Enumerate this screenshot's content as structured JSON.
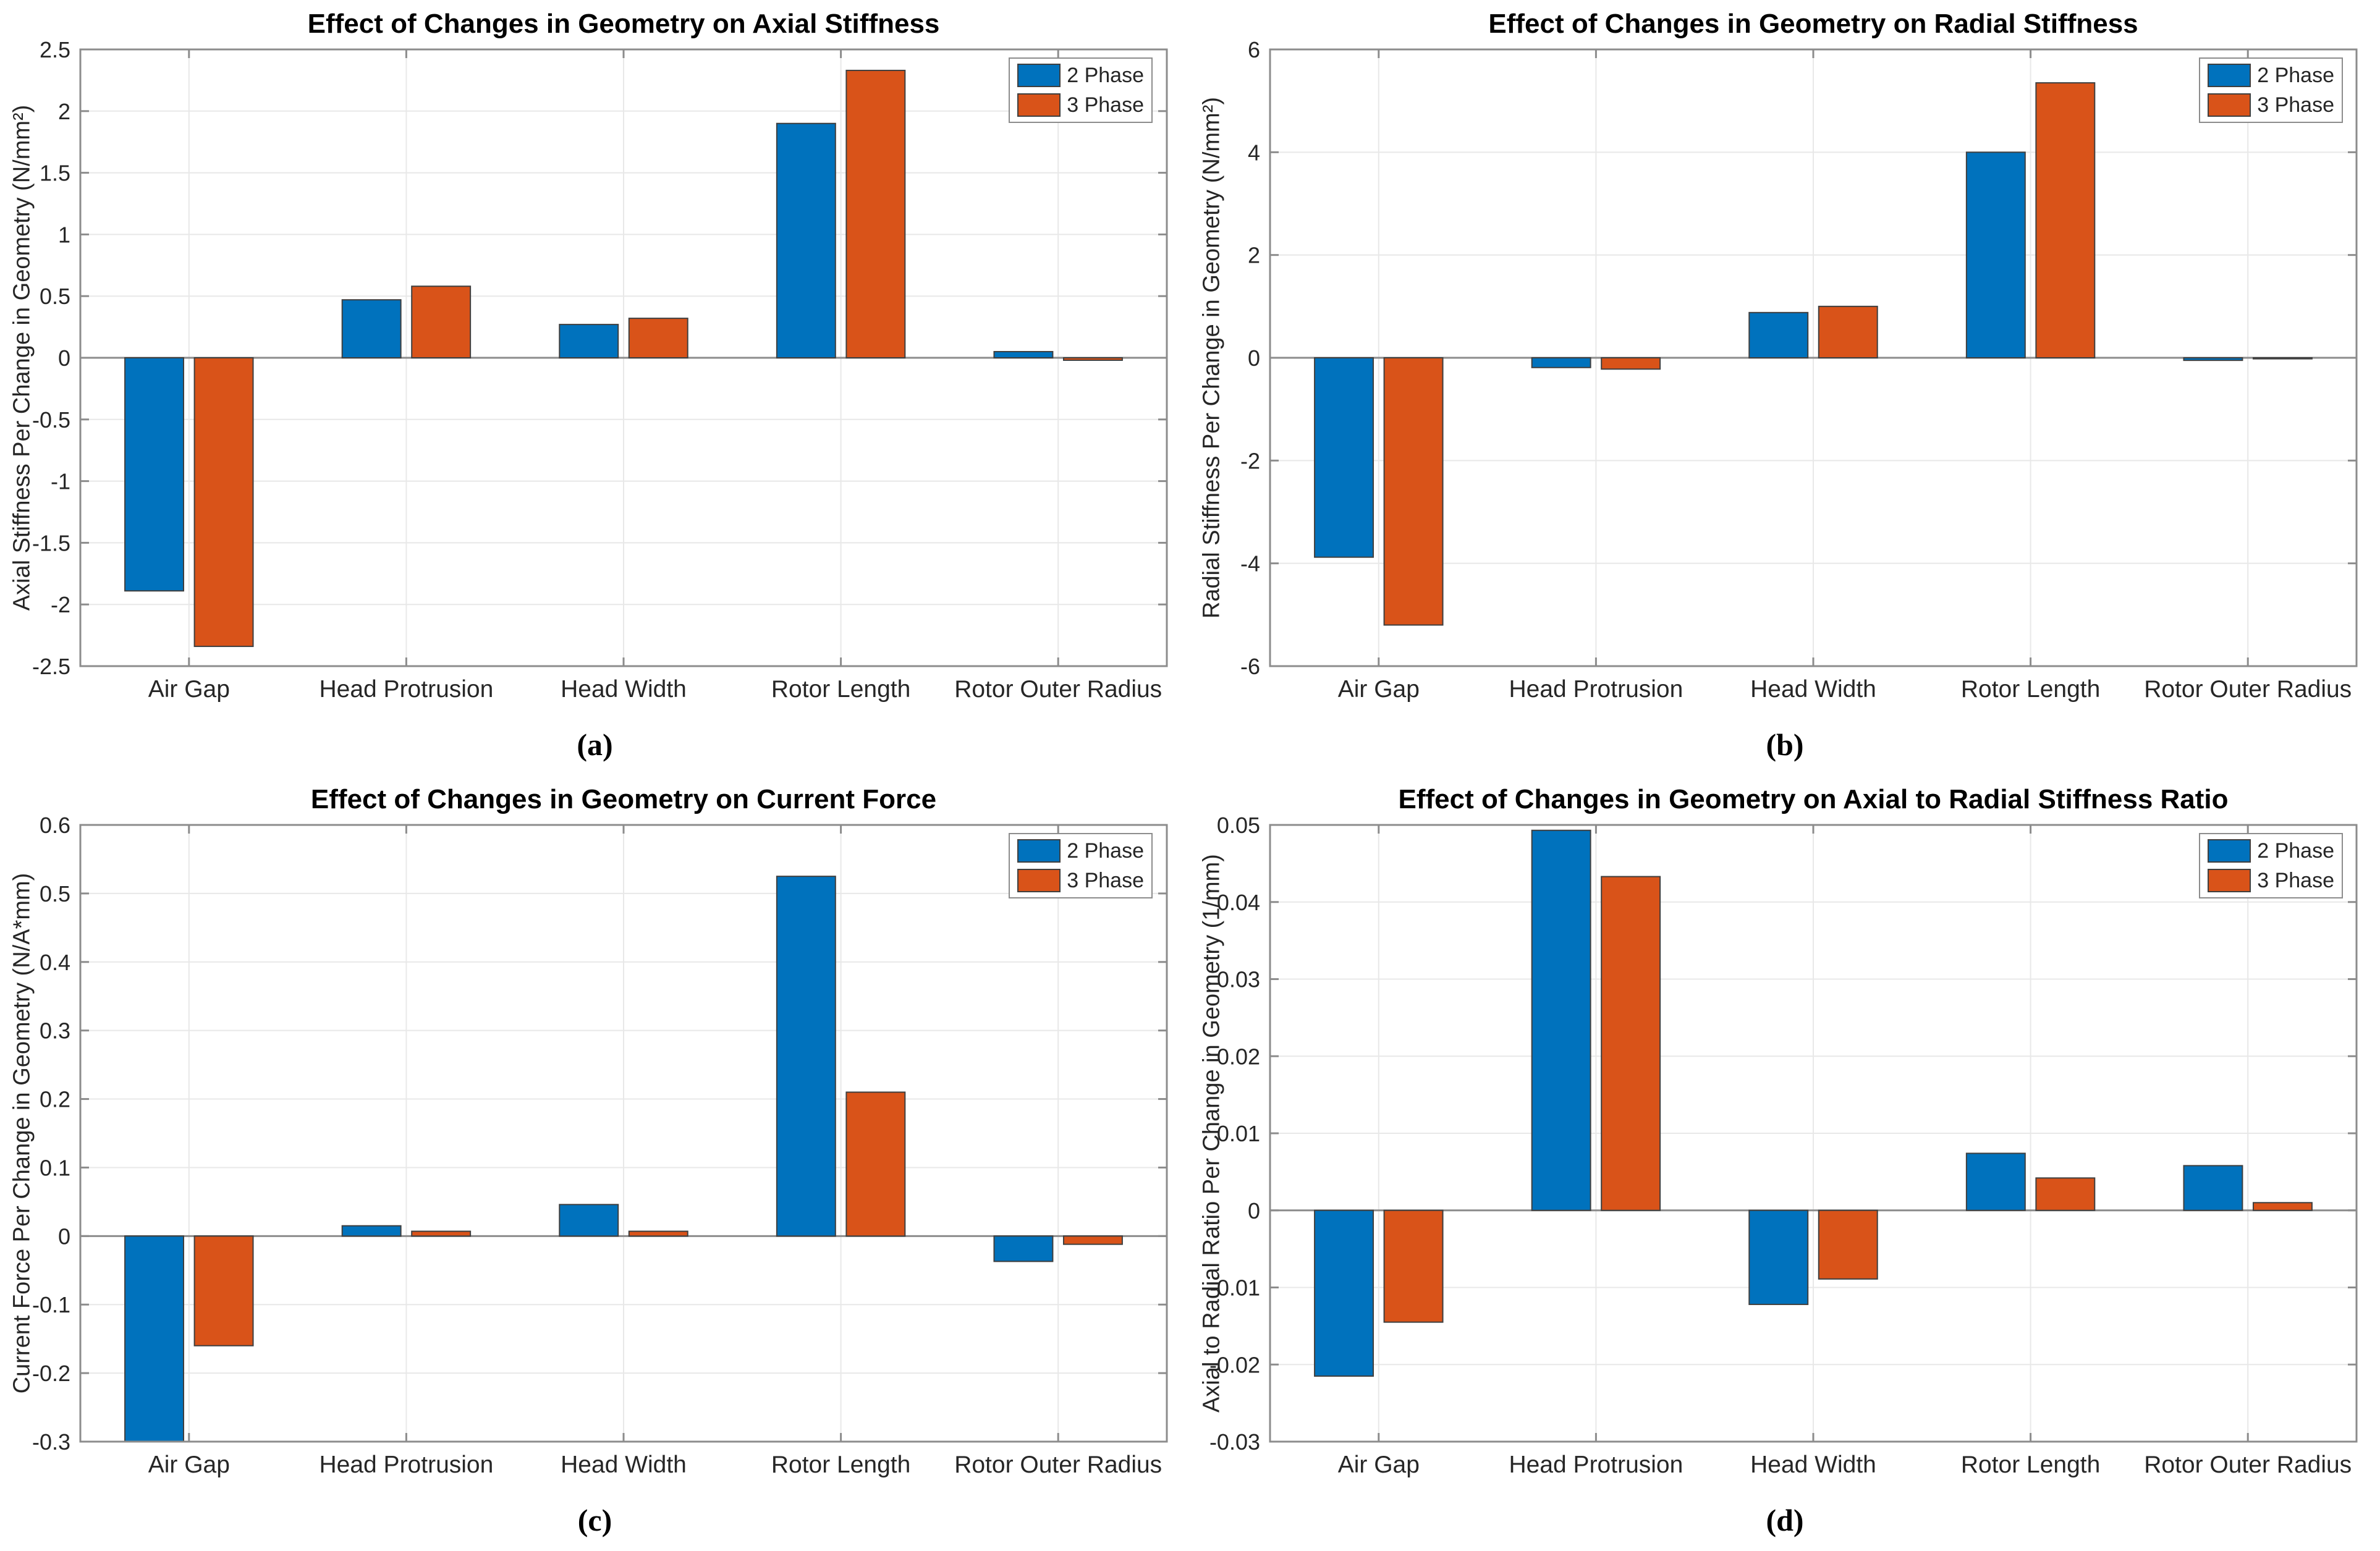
{
  "page": {
    "background": "#ffffff"
  },
  "legend": {
    "labels": [
      "2 Phase",
      "3 Phase"
    ],
    "position": "top-right"
  },
  "series_colors": {
    "2 Phase": "#0072BD",
    "3 Phase": "#D95319"
  },
  "style": {
    "axis_color": "#8c8c8c",
    "grid_color": "#e8e8e8",
    "bar_edge_color": "#3f3f3f",
    "text_color": "#262626"
  },
  "chart_data": [
    {
      "type": "bar",
      "title": "Effect of Changes in Geometry on Axial Stiffness",
      "ylabel": "Axial Stiffness Per Change in Geometry (N/mm²)",
      "xlabel": "",
      "caption": "(a)",
      "categories": [
        "Air Gap",
        "Head Protrusion",
        "Head Width",
        "Rotor Length",
        "Rotor Outer Radius"
      ],
      "series": [
        {
          "name": "2 Phase",
          "values": [
            -1.89,
            0.47,
            0.27,
            1.9,
            0.05
          ]
        },
        {
          "name": "3 Phase",
          "values": [
            -2.34,
            0.58,
            0.32,
            2.33,
            -0.02
          ]
        }
      ],
      "ylim": [
        -2.5,
        2.5
      ],
      "yticks": [
        "2.5",
        "2",
        "1.5",
        "1",
        "0.5",
        "0",
        "-0.5",
        "-1",
        "-1.5",
        "-2",
        "-2.5"
      ],
      "grid": true,
      "legend_position": "top-right"
    },
    {
      "type": "bar",
      "title": "Effect of Changes in Geometry on Radial Stiffness",
      "ylabel": "Radial Stiffness Per Change in Geometry (N/mm²)",
      "xlabel": "",
      "caption": "(b)",
      "categories": [
        "Air Gap",
        "Head Protrusion",
        "Head Width",
        "Rotor Length",
        "Rotor Outer Radius"
      ],
      "series": [
        {
          "name": "2 Phase",
          "values": [
            -3.88,
            -0.19,
            0.88,
            4.0,
            -0.05
          ]
        },
        {
          "name": "3 Phase",
          "values": [
            -5.2,
            -0.22,
            1.0,
            5.35,
            -0.02
          ]
        }
      ],
      "ylim": [
        -6,
        6
      ],
      "yticks": [
        "6",
        "4",
        "2",
        "0",
        "-2",
        "-4",
        "-6"
      ],
      "grid": true,
      "legend_position": "top-right"
    },
    {
      "type": "bar",
      "title": "Effect of Changes in Geometry on Current Force",
      "ylabel": "Current Force Per Change in Geometry (N/A*mm)",
      "xlabel": "",
      "caption": "(c)",
      "categories": [
        "Air Gap",
        "Head Protrusion",
        "Head Width",
        "Rotor Length",
        "Rotor Outer Radius"
      ],
      "series": [
        {
          "name": "2 Phase",
          "values": [
            -0.3,
            0.015,
            0.046,
            0.525,
            -0.037
          ]
        },
        {
          "name": "3 Phase",
          "values": [
            -0.16,
            0.007,
            0.007,
            0.21,
            -0.012
          ]
        }
      ],
      "ylim": [
        -0.3,
        0.6
      ],
      "yticks": [
        "0.6",
        "0.5",
        "0.4",
        "0.3",
        "0.2",
        "0.1",
        "0",
        "-0.1",
        "-0.2",
        "-0.3"
      ],
      "grid": true,
      "legend_position": "top-right"
    },
    {
      "type": "bar",
      "title": "Effect of Changes in Geometry on Axial to Radial Stiffness Ratio",
      "ylabel": "Axial to Radial Ratio Per Change in Geometry (1/mm)",
      "xlabel": "",
      "caption": "(d)",
      "categories": [
        "Air Gap",
        "Head Protrusion",
        "Head Width",
        "Rotor Length",
        "Rotor Outer Radius"
      ],
      "series": [
        {
          "name": "2 Phase",
          "values": [
            -0.0215,
            0.0493,
            -0.0122,
            0.0074,
            0.0058
          ]
        },
        {
          "name": "3 Phase",
          "values": [
            -0.0145,
            0.0433,
            -0.0089,
            0.0042,
            0.001
          ]
        }
      ],
      "ylim": [
        -0.03,
        0.05
      ],
      "yticks": [
        "0.05",
        "0.04",
        "0.03",
        "0.02",
        "0.01",
        "0",
        "-0.01",
        "-0.02",
        "-0.03"
      ],
      "grid": true,
      "legend_position": "top-right"
    }
  ]
}
